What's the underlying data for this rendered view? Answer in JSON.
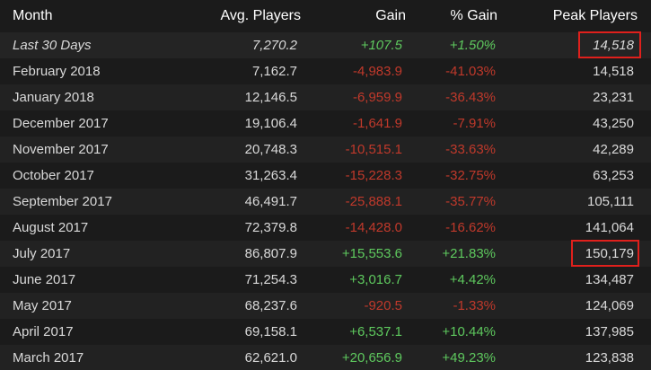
{
  "header": {
    "month": "Month",
    "avg_players": "Avg. Players",
    "gain": "Gain",
    "pct_gain": "% Gain",
    "peak_players": "Peak Players"
  },
  "rows": [
    {
      "month": "Last 30 Days",
      "avg": "7,270.2",
      "gain": "+107.5",
      "pct": "+1.50%",
      "peak": "14,518",
      "trend": "positive"
    },
    {
      "month": "February 2018",
      "avg": "7,162.7",
      "gain": "-4,983.9",
      "pct": "-41.03%",
      "peak": "14,518",
      "trend": "negative"
    },
    {
      "month": "January 2018",
      "avg": "12,146.5",
      "gain": "-6,959.9",
      "pct": "-36.43%",
      "peak": "23,231",
      "trend": "negative"
    },
    {
      "month": "December 2017",
      "avg": "19,106.4",
      "gain": "-1,641.9",
      "pct": "-7.91%",
      "peak": "43,250",
      "trend": "negative"
    },
    {
      "month": "November 2017",
      "avg": "20,748.3",
      "gain": "-10,515.1",
      "pct": "-33.63%",
      "peak": "42,289",
      "trend": "negative"
    },
    {
      "month": "October 2017",
      "avg": "31,263.4",
      "gain": "-15,228.3",
      "pct": "-32.75%",
      "peak": "63,253",
      "trend": "negative"
    },
    {
      "month": "September 2017",
      "avg": "46,491.7",
      "gain": "-25,888.1",
      "pct": "-35.77%",
      "peak": "105,111",
      "trend": "negative"
    },
    {
      "month": "August 2017",
      "avg": "72,379.8",
      "gain": "-14,428.0",
      "pct": "-16.62%",
      "peak": "141,064",
      "trend": "negative"
    },
    {
      "month": "July 2017",
      "avg": "86,807.9",
      "gain": "+15,553.6",
      "pct": "+21.83%",
      "peak": "150,179",
      "trend": "positive"
    },
    {
      "month": "June 2017",
      "avg": "71,254.3",
      "gain": "+3,016.7",
      "pct": "+4.42%",
      "peak": "134,487",
      "trend": "positive"
    },
    {
      "month": "May 2017",
      "avg": "68,237.6",
      "gain": "-920.5",
      "pct": "-1.33%",
      "peak": "124,069",
      "trend": "negative"
    },
    {
      "month": "April 2017",
      "avg": "69,158.1",
      "gain": "+6,537.1",
      "pct": "+10.44%",
      "peak": "137,985",
      "trend": "positive"
    },
    {
      "month": "March 2017",
      "avg": "62,621.0",
      "gain": "+20,656.9",
      "pct": "+49.23%",
      "peak": "123,838",
      "trend": "positive"
    }
  ],
  "colors": {
    "positive": "#5ec95e",
    "negative": "#c0392b",
    "highlight_box": "#e0201c",
    "background": "#1b1b1b"
  }
}
